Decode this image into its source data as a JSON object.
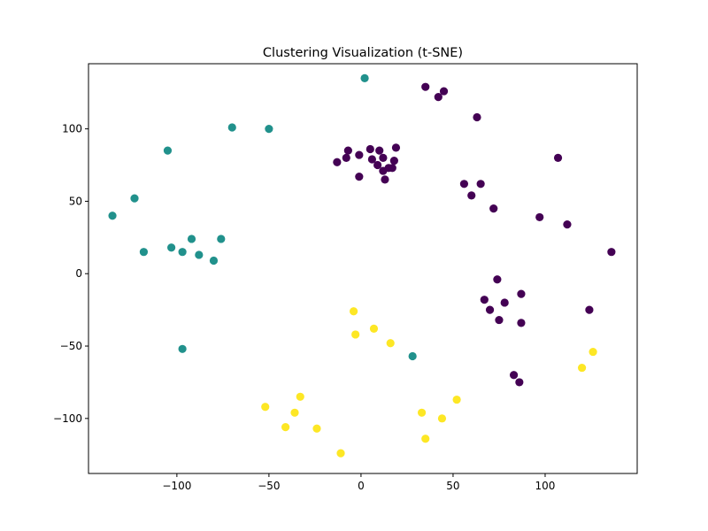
{
  "chart_data": {
    "type": "scatter",
    "title": "Clustering Visualization (t-SNE)",
    "xlabel": "",
    "ylabel": "",
    "xlim": [
      -148,
      150
    ],
    "ylim": [
      -138,
      145
    ],
    "xticks": [
      -100,
      -50,
      0,
      50,
      100
    ],
    "yticks": [
      -100,
      -50,
      0,
      50,
      100
    ],
    "grid": false,
    "colors": {
      "cluster_0": "#440154",
      "cluster_1": "#21918c",
      "cluster_2": "#fde725"
    },
    "series": [
      {
        "cluster": 0,
        "color": "#440154",
        "points": [
          [
            35,
            129
          ],
          [
            42,
            122
          ],
          [
            45,
            126
          ],
          [
            63,
            108
          ],
          [
            5,
            86
          ],
          [
            -7,
            85
          ],
          [
            10,
            85
          ],
          [
            19,
            87
          ],
          [
            -13,
            77
          ],
          [
            -8,
            80
          ],
          [
            -1,
            82
          ],
          [
            6,
            79
          ],
          [
            12,
            80
          ],
          [
            18,
            78
          ],
          [
            9,
            75
          ],
          [
            12,
            71
          ],
          [
            15,
            73
          ],
          [
            17,
            73
          ],
          [
            13,
            65
          ],
          [
            -1,
            67
          ],
          [
            107,
            80
          ],
          [
            56,
            62
          ],
          [
            65,
            62
          ],
          [
            60,
            54
          ],
          [
            72,
            45
          ],
          [
            97,
            39
          ],
          [
            112,
            34
          ],
          [
            136,
            15
          ],
          [
            74,
            -4
          ],
          [
            67,
            -18
          ],
          [
            87,
            -14
          ],
          [
            78,
            -20
          ],
          [
            70,
            -25
          ],
          [
            75,
            -32
          ],
          [
            87,
            -34
          ],
          [
            124,
            -25
          ],
          [
            83,
            -70
          ],
          [
            86,
            -75
          ]
        ]
      },
      {
        "cluster": 1,
        "color": "#21918c",
        "points": [
          [
            2,
            135
          ],
          [
            -70,
            101
          ],
          [
            -50,
            100
          ],
          [
            -105,
            85
          ],
          [
            -123,
            52
          ],
          [
            -135,
            40
          ],
          [
            -92,
            24
          ],
          [
            -76,
            24
          ],
          [
            -103,
            18
          ],
          [
            -97,
            15
          ],
          [
            -118,
            15
          ],
          [
            -88,
            13
          ],
          [
            -80,
            9
          ],
          [
            -97,
            -52
          ],
          [
            28,
            -57
          ]
        ]
      },
      {
        "cluster": 2,
        "color": "#fde725",
        "points": [
          [
            -4,
            -26
          ],
          [
            7,
            -38
          ],
          [
            -3,
            -42
          ],
          [
            16,
            -48
          ],
          [
            120,
            -65
          ],
          [
            126,
            -54
          ],
          [
            -33,
            -85
          ],
          [
            -52,
            -92
          ],
          [
            -36,
            -96
          ],
          [
            -41,
            -106
          ],
          [
            -24,
            -107
          ],
          [
            -11,
            -124
          ],
          [
            33,
            -96
          ],
          [
            44,
            -100
          ],
          [
            35,
            -114
          ],
          [
            52,
            -87
          ]
        ]
      }
    ]
  }
}
